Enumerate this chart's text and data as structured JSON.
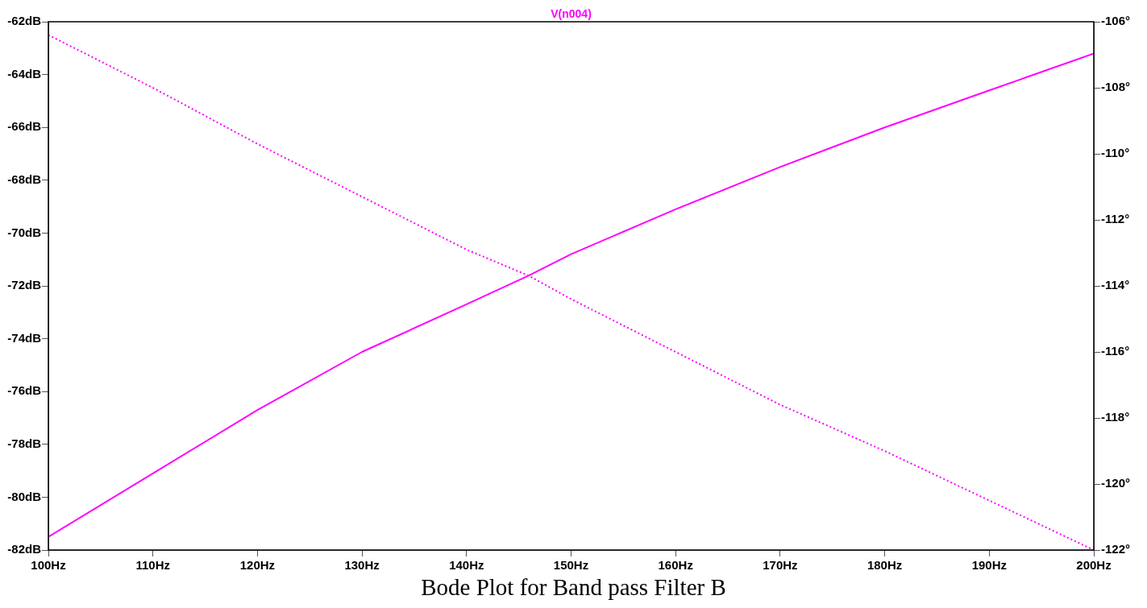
{
  "chart_data": {
    "type": "line",
    "title": "V(n004)",
    "annotations": [
      "Bode Plot for Band pass Filter B"
    ],
    "x": [
      100,
      110,
      120,
      130,
      140,
      146,
      150,
      160,
      170,
      180,
      190,
      200
    ],
    "xlim": [
      100,
      200
    ],
    "xticks": [
      {
        "value": 100,
        "label": "100Hz"
      },
      {
        "value": 110,
        "label": "110Hz"
      },
      {
        "value": 120,
        "label": "120Hz"
      },
      {
        "value": 130,
        "label": "130Hz"
      },
      {
        "value": 140,
        "label": "140Hz"
      },
      {
        "value": 150,
        "label": "150Hz"
      },
      {
        "value": 160,
        "label": "160Hz"
      },
      {
        "value": 170,
        "label": "170Hz"
      },
      {
        "value": 180,
        "label": "180Hz"
      },
      {
        "value": 190,
        "label": "190Hz"
      },
      {
        "value": 200,
        "label": "200Hz"
      }
    ],
    "ylim": [
      -82,
      -62
    ],
    "yticks": [
      {
        "value": -82,
        "label": "-82dB"
      },
      {
        "value": -80,
        "label": "-80dB"
      },
      {
        "value": -78,
        "label": "-78dB"
      },
      {
        "value": -76,
        "label": "-76dB"
      },
      {
        "value": -74,
        "label": "-74dB"
      },
      {
        "value": -72,
        "label": "-72dB"
      },
      {
        "value": -70,
        "label": "-70dB"
      },
      {
        "value": -68,
        "label": "-68dB"
      },
      {
        "value": -66,
        "label": "-66dB"
      },
      {
        "value": -64,
        "label": "-64dB"
      },
      {
        "value": -62,
        "label": "-62dB"
      }
    ],
    "y2lim": [
      -122,
      -106
    ],
    "y2ticks": [
      {
        "value": -122,
        "label": "-122°"
      },
      {
        "value": -120,
        "label": "-120°"
      },
      {
        "value": -118,
        "label": "-118°"
      },
      {
        "value": -116,
        "label": "-116°"
      },
      {
        "value": -114,
        "label": "-114°"
      },
      {
        "value": -112,
        "label": "-112°"
      },
      {
        "value": -110,
        "label": "-110°"
      },
      {
        "value": -108,
        "label": "-108°"
      },
      {
        "value": -106,
        "label": "-106°"
      }
    ],
    "grid": false,
    "legend": false,
    "marker": "none",
    "series": [
      {
        "color": "#ff00ff",
        "line_style": "solid",
        "values": [
          -81.5,
          -79.1,
          -76.7,
          -74.5,
          -72.7,
          -71.6,
          -70.8,
          -69.1,
          -67.5,
          -66.0,
          -64.6,
          -63.2
        ]
      },
      {
        "color": "#ff00ff",
        "line_style": "dotted",
        "axis": "y2",
        "values": [
          -106.4,
          -108.0,
          -109.7,
          -111.3,
          -112.9,
          -113.7,
          -114.4,
          -116.0,
          -117.6,
          -119.0,
          -120.5,
          -122.0
        ]
      }
    ]
  }
}
